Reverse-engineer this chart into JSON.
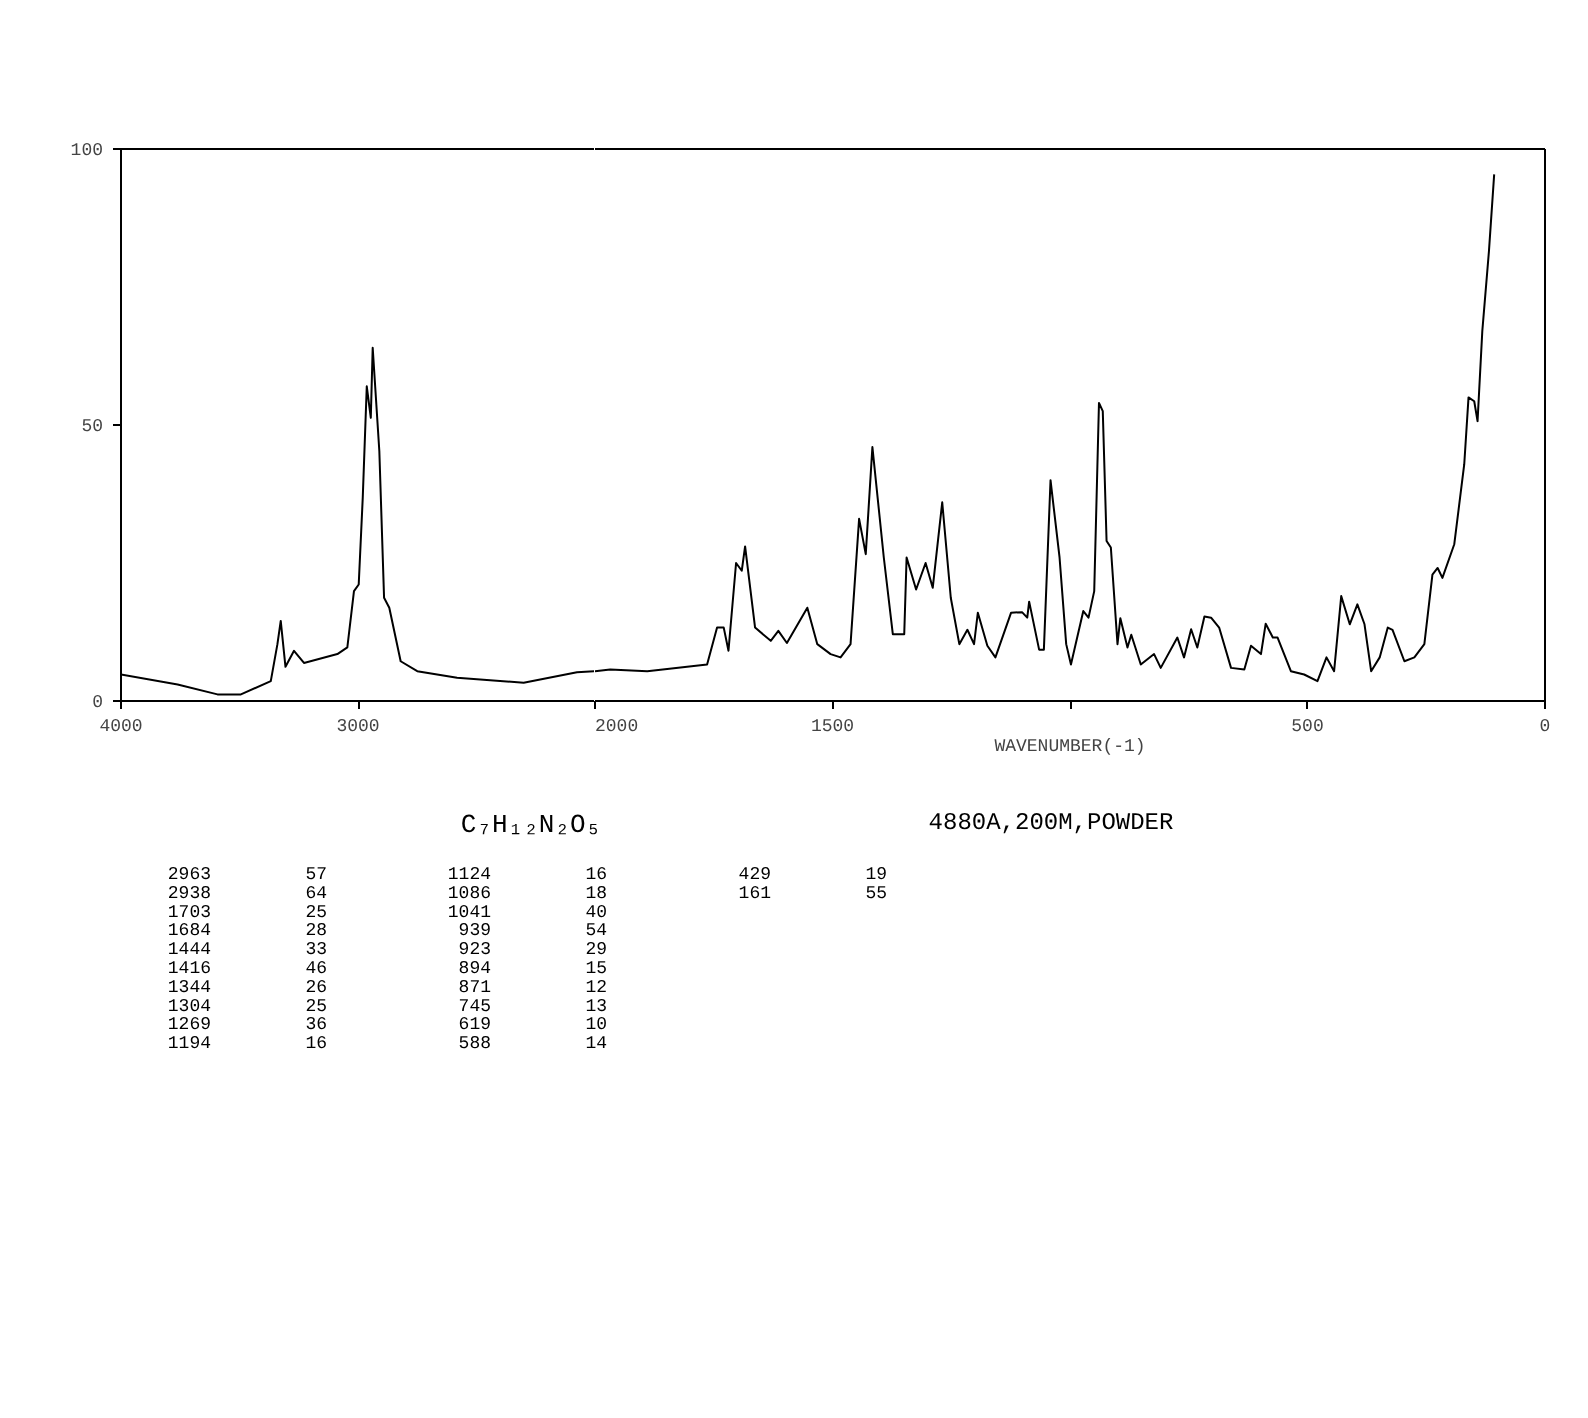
{
  "chart_data": [
    {
      "type": "line",
      "x": [
        4000,
        3761,
        3593,
        3494,
        3368,
        3340,
        3326,
        3306,
        3270,
        3228,
        3087,
        3045,
        3017,
        2997,
        2980,
        2963,
        2946,
        2938,
        2910,
        2890,
        2868,
        2820,
        2750,
        2582,
        2301,
        2076,
        2000
      ],
      "series": [
        {
          "color": "#000000",
          "values": [
            4.8,
            3.0,
            1.2,
            1.2,
            3.6,
            10.3,
            14.5,
            6.2,
            9.1,
            6.9,
            8.5,
            9.7,
            19.9,
            21.1,
            36.8,
            57,
            51.3,
            64,
            45.3,
            18.7,
            16.9,
            7.2,
            5.4,
            4.2,
            3.3,
            5.2,
            5.4
          ]
        }
      ],
      "xlim": [
        4000,
        2000
      ],
      "xticks": [
        4000,
        3000
      ],
      "ylim": [
        0,
        100
      ],
      "yticks": [
        0,
        50,
        100
      ],
      "annotations": [
        "C₇H₁₂N₂O₅",
        "4880A,200M,POWDER",
        "2963 57",
        "2938 64",
        "1703 25",
        "1684 28",
        "1444 33",
        "1416 46",
        "1344 26",
        "1304 25",
        "1269 36",
        "1194 16",
        "1124 16",
        "1086 18",
        "1041 40",
        "939 54",
        "923 29",
        "894 15",
        "871 12",
        "745 13",
        "619 10",
        "588 14",
        "429 19",
        "161 55"
      ]
    },
    {
      "type": "line",
      "xlabel": "WAVENUMBER(-1)",
      "tick_labels": "x",
      "x": [
        2000,
        1968,
        1890,
        1764,
        1743,
        1729,
        1719,
        1703,
        1691,
        1684,
        1663,
        1630,
        1614,
        1596,
        1553,
        1532,
        1504,
        1483,
        1462,
        1444,
        1430,
        1416,
        1392,
        1373,
        1349,
        1344,
        1324,
        1304,
        1289,
        1269,
        1251,
        1233,
        1216,
        1202,
        1194,
        1174,
        1157,
        1124,
        1101,
        1090,
        1086,
        1065,
        1055,
        1041,
        1022,
        1008,
        998,
        972,
        961,
        949,
        939,
        931,
        923,
        914,
        900,
        894,
        879,
        871,
        851,
        823,
        809,
        774,
        760,
        745,
        732,
        717,
        703,
        686,
        661,
        633,
        619,
        598,
        588,
        573,
        563,
        535,
        507,
        479,
        460,
        444,
        429,
        411,
        395,
        380,
        366,
        348,
        331,
        321,
        296,
        275,
        254,
        237,
        226,
        216,
        191,
        170,
        161,
        149,
        142,
        132,
        118,
        107
      ],
      "series": [
        {
          "color": "#000000",
          "values": [
            5.4,
            5.7,
            5.4,
            6.6,
            13.3,
            13.3,
            9.1,
            25,
            23.6,
            28,
            13.3,
            10.9,
            12.7,
            10.5,
            16.9,
            10.3,
            8.5,
            7.9,
            10.3,
            33,
            26.6,
            46,
            26.0,
            12.1,
            12.1,
            26,
            20.2,
            25,
            20.5,
            36,
            18.7,
            10.3,
            12.9,
            10.3,
            16,
            10.0,
            7.9,
            16,
            16.1,
            15.1,
            18,
            9.3,
            9.3,
            40,
            26.0,
            10.3,
            6.6,
            16.3,
            15.1,
            19.9,
            54,
            52.5,
            29,
            27.8,
            10.3,
            15,
            9.7,
            12,
            6.6,
            8.5,
            6.0,
            11.5,
            7.9,
            13,
            9.7,
            15.3,
            15.1,
            13.3,
            6.0,
            5.7,
            10,
            8.5,
            14,
            11.5,
            11.5,
            5.4,
            4.8,
            3.6,
            7.9,
            5.4,
            19,
            13.9,
            17.5,
            13.9,
            5.4,
            7.9,
            13.3,
            12.9,
            7.2,
            7.9,
            10.3,
            22.9,
            24.1,
            22.3,
            28.4,
            42.9,
            55,
            54.3,
            50.7,
            67.0,
            81.5,
            95.4
          ]
        }
      ],
      "xlim": [
        2000,
        0
      ],
      "xticks": [
        2000,
        1500,
        {
          "value": 1000,
          "label": null
        },
        500,
        0
      ],
      "ylim": [
        0,
        100
      ]
    }
  ]
}
